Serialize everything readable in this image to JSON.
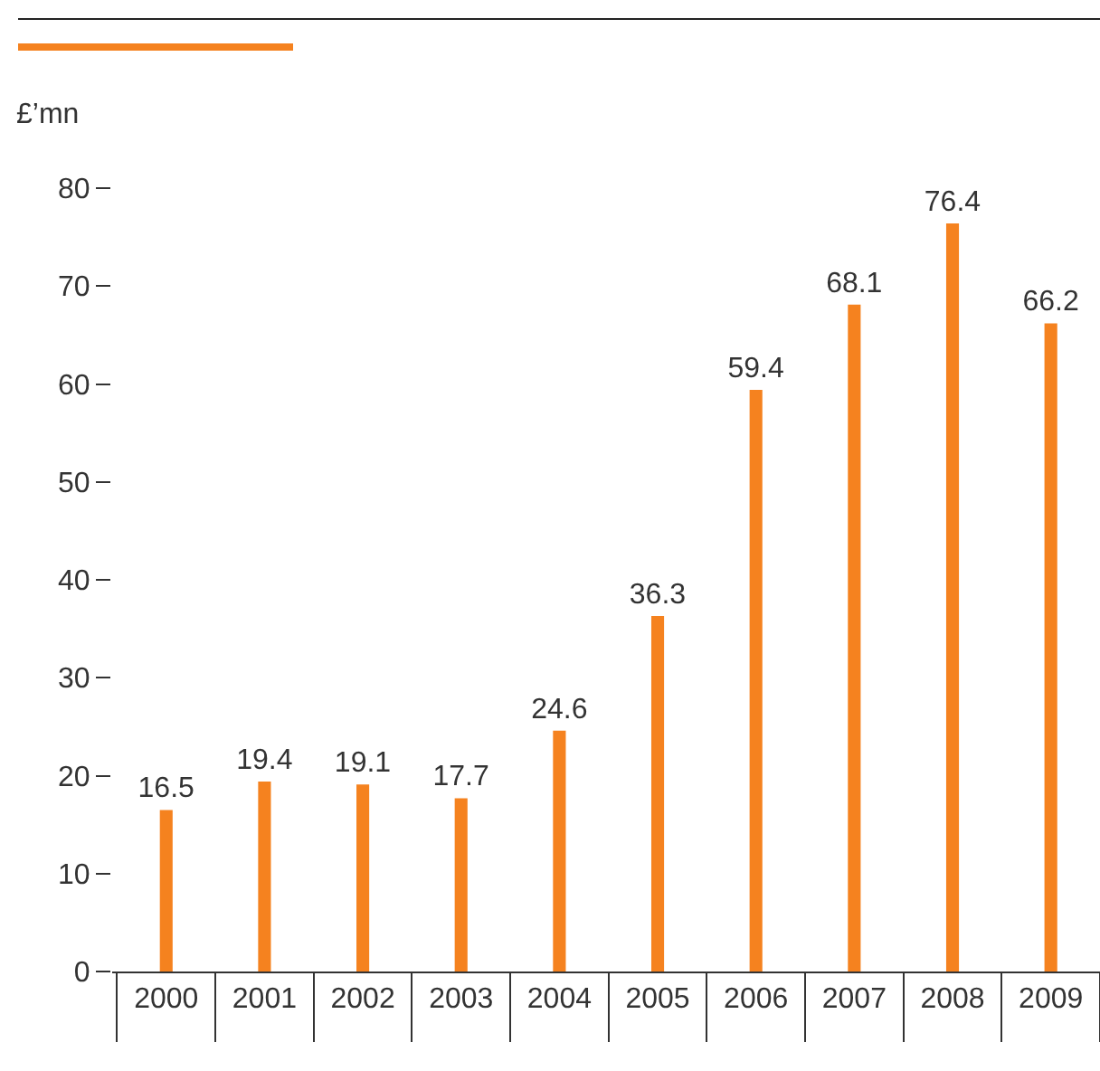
{
  "chart_data": {
    "type": "bar",
    "ylabel": "£’mn",
    "categories": [
      "2000",
      "2001",
      "2002",
      "2003",
      "2004",
      "2005",
      "2006",
      "2007",
      "2008",
      "2009"
    ],
    "values": [
      16.5,
      19.4,
      19.1,
      17.7,
      24.6,
      36.3,
      59.4,
      68.1,
      76.4,
      66.2
    ],
    "color": "#f5821f",
    "data_labels": true,
    "grid": false,
    "legend": false,
    "ylim": [
      0,
      80
    ],
    "yticks": [
      0,
      10,
      20,
      30,
      40,
      50,
      60,
      70,
      80
    ]
  }
}
